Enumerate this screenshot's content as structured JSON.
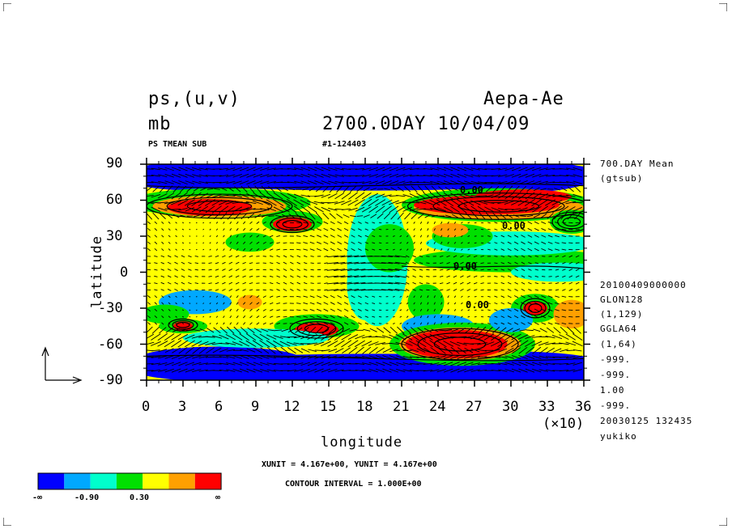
{
  "header": {
    "variable": "ps,(u,v)",
    "unit": "mb",
    "experiment": "Aepa-Ae",
    "time_label": "2700.0DAY 10/04/09",
    "subtitle_left": "PS TMEAN SUB",
    "subtitle_mid": "#1-124403"
  },
  "side_info": {
    "line1": "700.DAY Mean",
    "line2": "(gtsub)",
    "line3": "20100409000000",
    "line4": "GLON128",
    "line5": "(1,129)",
    "line6": "GGLA64",
    "line7": "(1,64)",
    "line8": "-999.",
    "line9": "-999.",
    "line10": "1.00",
    "line11": "-999.",
    "line12": "20030125 132435",
    "line13": "yukiko"
  },
  "footer": {
    "units_line": "XUNIT = 4.167e+00, YUNIT = 4.167e+00",
    "contour_line": "CONTOUR INTERVAL = 1.000E+00"
  },
  "contour_labels": [
    "0.00",
    "0.00",
    "0.00",
    "0.00"
  ],
  "colors": {
    "levels": [
      "#0000ff",
      "#00a8ff",
      "#00ffcc",
      "#00e000",
      "#ffff00",
      "#ffa000",
      "#ff0000"
    ]
  },
  "chart_data": {
    "type": "heatmap",
    "title": "ps,(u,v)",
    "xlabel": "longitude",
    "ylabel": "latitude",
    "x_ticks": [
      "0",
      "3",
      "6",
      "9",
      "12",
      "15",
      "18",
      "21",
      "24",
      "27",
      "30",
      "33",
      "36"
    ],
    "x_multiplier": "(×10)",
    "xlim": [
      0,
      360
    ],
    "y_ticks": [
      "90",
      "60",
      "30",
      "0",
      "-30",
      "-60",
      "-90"
    ],
    "ylim": [
      -90,
      90
    ],
    "colorbar_labels": [
      "-∞",
      "-0.90",
      "0.30",
      "∞"
    ],
    "vector_field": true
  }
}
